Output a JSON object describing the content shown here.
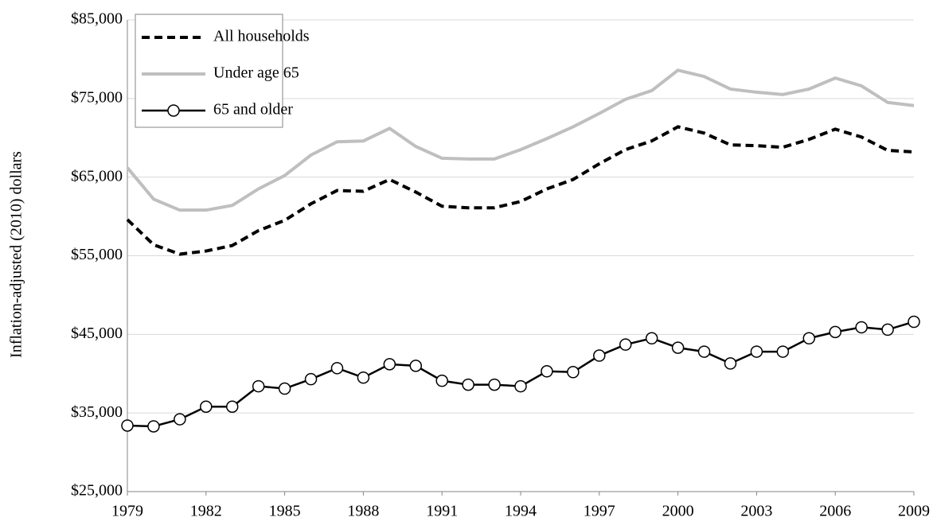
{
  "chart_data": {
    "type": "line",
    "y_label": "Inflation-adjusted (2010) dollars",
    "x": [
      1979,
      1980,
      1981,
      1982,
      1983,
      1984,
      1985,
      1986,
      1987,
      1988,
      1989,
      1990,
      1991,
      1992,
      1993,
      1994,
      1995,
      1996,
      1997,
      1998,
      1999,
      2000,
      2001,
      2002,
      2003,
      2004,
      2005,
      2006,
      2007,
      2008,
      2009
    ],
    "series": [
      {
        "name": "All households",
        "color": "#000000",
        "style": "dashed",
        "marker": "none",
        "values": [
          59600,
          56400,
          55200,
          55600,
          56300,
          58200,
          59500,
          61600,
          63300,
          63200,
          64700,
          63100,
          61300,
          61100,
          61100,
          61900,
          63500,
          64700,
          66700,
          68500,
          69600,
          71400,
          70600,
          69100,
          69000,
          68800,
          69800,
          71100,
          70100,
          68400,
          68200
        ]
      },
      {
        "name": "Under age 65",
        "color": "#bfbfbf",
        "style": "solid",
        "marker": "none",
        "values": [
          66200,
          62200,
          60800,
          60800,
          61400,
          63500,
          65200,
          67800,
          69500,
          69600,
          71200,
          68900,
          67400,
          67300,
          67300,
          68500,
          69900,
          71400,
          73100,
          74900,
          76000,
          78600,
          77800,
          76200,
          75800,
          75500,
          76200,
          77600,
          76600,
          74500,
          74100
        ]
      },
      {
        "name": "65 and older",
        "color": "#000000",
        "style": "solid",
        "marker": "circle",
        "values": [
          33400,
          33300,
          34200,
          35800,
          35800,
          38400,
          38100,
          39300,
          40700,
          39500,
          41200,
          41000,
          39100,
          38600,
          38600,
          38400,
          40300,
          40200,
          42300,
          43700,
          44500,
          43300,
          42800,
          41300,
          42800,
          42800,
          44500,
          45300,
          45900,
          45600,
          46600
        ]
      }
    ],
    "xlim": [
      1979,
      2009
    ],
    "xticks": [
      1979,
      1982,
      1985,
      1988,
      1991,
      1994,
      1997,
      2000,
      2003,
      2006,
      2009
    ],
    "ylim": [
      25000,
      85000
    ],
    "yticks": [
      {
        "value": 25000,
        "label": "$25,000"
      },
      {
        "value": 35000,
        "label": "$35,000"
      },
      {
        "value": 45000,
        "label": "$45,000"
      },
      {
        "value": 55000,
        "label": "$55,000"
      },
      {
        "value": 65000,
        "label": "$65,000"
      },
      {
        "value": 75000,
        "label": "$75,000"
      },
      {
        "value": 85000,
        "label": "$85,000"
      }
    ],
    "grid": true,
    "legend": "upper-left"
  }
}
